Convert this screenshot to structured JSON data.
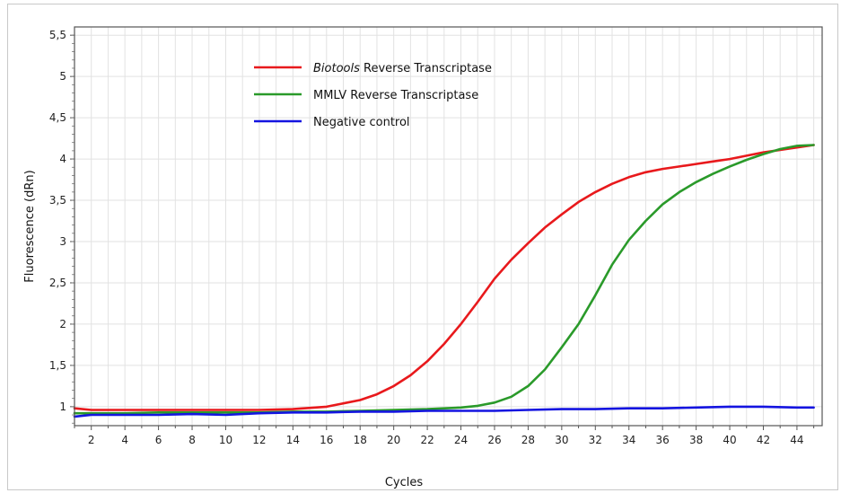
{
  "chart_data": {
    "type": "line",
    "xlabel": "Cycles",
    "ylabel": "Fluorescence (dRn)",
    "xlim": [
      1,
      45.5
    ],
    "ylim": [
      0.77,
      5.6
    ],
    "x_ticks": [
      "2",
      "4",
      "6",
      "8",
      "10",
      "12",
      "14",
      "16",
      "18",
      "20",
      "22",
      "24",
      "26",
      "28",
      "30",
      "32",
      "34",
      "36",
      "38",
      "40",
      "42",
      "44"
    ],
    "y_ticks": [
      "1",
      "1,5",
      "2",
      "2,5",
      "3",
      "3,5",
      "4",
      "4,5",
      "5",
      "5,5"
    ],
    "grid": true,
    "legend_position": "top-left",
    "series": [
      {
        "name": "Biotools Reverse Transcriptase",
        "name_italic": "Biotools",
        "name_rest": " Reverse Transcriptase",
        "color": "#e8191c",
        "x": [
          1,
          2,
          4,
          6,
          8,
          10,
          12,
          14,
          16,
          17,
          18,
          19,
          20,
          21,
          22,
          23,
          24,
          25,
          26,
          27,
          28,
          29,
          30,
          31,
          32,
          33,
          34,
          35,
          36,
          37,
          38,
          39,
          40,
          41,
          42,
          43,
          44,
          45
        ],
        "y": [
          0.98,
          0.96,
          0.96,
          0.96,
          0.96,
          0.96,
          0.96,
          0.97,
          1.0,
          1.04,
          1.08,
          1.15,
          1.25,
          1.38,
          1.55,
          1.76,
          2.0,
          2.27,
          2.55,
          2.78,
          2.98,
          3.17,
          3.33,
          3.48,
          3.6,
          3.7,
          3.78,
          3.84,
          3.88,
          3.91,
          3.94,
          3.97,
          4.0,
          4.04,
          4.08,
          4.11,
          4.14,
          4.17
        ]
      },
      {
        "name": "MMLV Reverse Transcriptase",
        "color": "#2a9a2a",
        "x": [
          1,
          2,
          4,
          6,
          8,
          10,
          12,
          14,
          16,
          18,
          20,
          22,
          24,
          25,
          26,
          27,
          28,
          29,
          30,
          31,
          32,
          33,
          34,
          35,
          36,
          37,
          38,
          39,
          40,
          41,
          42,
          43,
          44,
          45
        ],
        "y": [
          0.92,
          0.92,
          0.92,
          0.93,
          0.93,
          0.93,
          0.93,
          0.94,
          0.94,
          0.95,
          0.96,
          0.97,
          0.99,
          1.01,
          1.05,
          1.12,
          1.25,
          1.45,
          1.72,
          2.0,
          2.35,
          2.72,
          3.02,
          3.25,
          3.45,
          3.6,
          3.72,
          3.82,
          3.91,
          3.99,
          4.06,
          4.12,
          4.16,
          4.17
        ]
      },
      {
        "name": "Negative control",
        "color": "#1414e0",
        "x": [
          1,
          2,
          4,
          6,
          8,
          10,
          12,
          14,
          16,
          18,
          20,
          22,
          24,
          26,
          28,
          30,
          32,
          34,
          36,
          38,
          40,
          41,
          42,
          44,
          45
        ],
        "y": [
          0.88,
          0.9,
          0.9,
          0.9,
          0.91,
          0.9,
          0.92,
          0.93,
          0.93,
          0.94,
          0.94,
          0.95,
          0.95,
          0.95,
          0.96,
          0.97,
          0.97,
          0.98,
          0.98,
          0.99,
          1.0,
          1.0,
          1.0,
          0.99,
          0.99
        ]
      }
    ]
  }
}
